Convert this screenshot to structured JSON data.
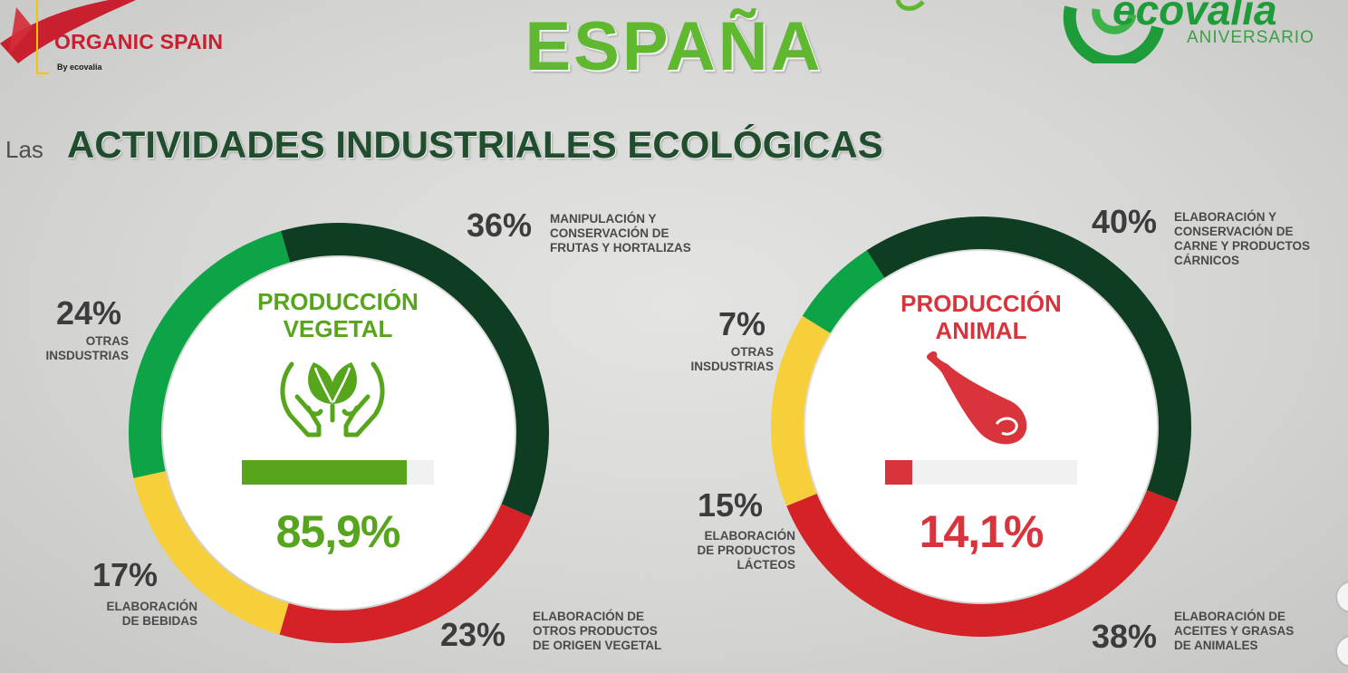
{
  "header": {
    "left_brand": "ORGANIC SPAIN",
    "left_brand_sub": "By ecovalia",
    "title": "ESPAÑA",
    "right_brand": "ecovalia",
    "right_brand_sub": "ANIVERSARIO"
  },
  "section": {
    "prefix": "Las",
    "title": "ACTIVIDADES INDUSTRIALES ECOLÓGICAS"
  },
  "colors": {
    "dark_green": "#0f3d22",
    "red": "#d42227",
    "yellow": "#f7cf3a",
    "green": "#0ca447",
    "vegetal_accent": "#57a51c",
    "animal_accent": "#d9343b"
  },
  "charts": {
    "vegetal": {
      "title_line1": "PRODUCCIÓN",
      "title_line2": "VEGETAL",
      "icon": "plant-in-hands-icon",
      "share_value": "85,9%",
      "share_fraction": 0.859,
      "segments": [
        {
          "pct": "36%",
          "value": 36,
          "color": "#0f3d22",
          "label": [
            "MANIPULACIÓN Y",
            "CONSERVACIÓN DE",
            "FRUTAS Y HORTALIZAS"
          ]
        },
        {
          "pct": "23%",
          "value": 23,
          "color": "#d42227",
          "label": [
            "ELABORACIÓN DE",
            "OTROS PRODUCTOS",
            "DE ORIGEN VEGETAL"
          ]
        },
        {
          "pct": "17%",
          "value": 17,
          "color": "#f7cf3a",
          "label": [
            "ELABORACIÓN",
            "DE BEBIDAS"
          ]
        },
        {
          "pct": "24%",
          "value": 24,
          "color": "#0ca447",
          "label": [
            "OTRAS",
            "INSDUSTRIAS"
          ]
        }
      ]
    },
    "animal": {
      "title_line1": "PRODUCCIÓN",
      "title_line2": "ANIMAL",
      "icon": "ham-leg-icon",
      "share_value": "14,1%",
      "share_fraction": 0.141,
      "segments": [
        {
          "pct": "40%",
          "value": 40,
          "color": "#0f3d22",
          "label": [
            "ELABORACIÓN Y",
            "CONSERVACIÓN DE",
            "CARNE Y PRODUCTOS",
            "CÁRNICOS"
          ]
        },
        {
          "pct": "38%",
          "value": 38,
          "color": "#d42227",
          "label": [
            "ELABORACIÓN DE",
            "ACEITES Y GRASAS",
            "DE ANIMALES"
          ]
        },
        {
          "pct": "15%",
          "value": 15,
          "color": "#f7cf3a",
          "label": [
            "ELABORACIÓN",
            "DE PRODUCTOS",
            "LÁCTEOS"
          ]
        },
        {
          "pct": "7%",
          "value": 7,
          "color": "#0ca447",
          "label": [
            "OTRAS",
            "INSDUSTRIAS"
          ]
        }
      ]
    }
  }
}
